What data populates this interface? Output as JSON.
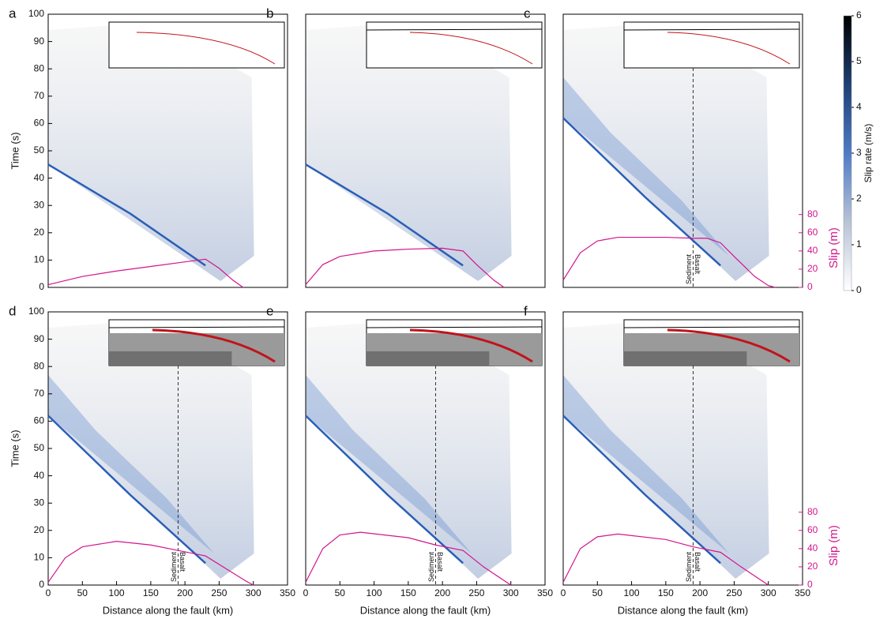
{
  "chart_data": [
    {
      "type": "line",
      "panel": "a",
      "ylabel": "Time (s)",
      "xlim": [
        0,
        350
      ],
      "ylim": [
        0,
        100
      ],
      "y2lim": [
        0,
        300
      ],
      "yticks": [
        0,
        10,
        20,
        30,
        40,
        50,
        60,
        70,
        80,
        90,
        100
      ],
      "series": [
        {
          "color": "#2a5fb8",
          "x": [
            0,
            120,
            230
          ],
          "values": [
            45,
            27,
            8
          ]
        },
        {
          "color": "#d4148c",
          "axis": "y2",
          "x": [
            0,
            50,
            100,
            150,
            200,
            230,
            250,
            270,
            285
          ],
          "values": [
            3,
            12,
            18,
            23,
            28,
            31,
            21,
            8,
            0
          ]
        }
      ]
    },
    {
      "type": "line",
      "panel": "b",
      "xlim": [
        0,
        350
      ],
      "ylim": [
        0,
        100
      ],
      "y2lim": [
        0,
        300
      ],
      "series": [
        {
          "color": "#2a5fb8",
          "x": [
            0,
            120,
            230
          ],
          "values": [
            45,
            27,
            8
          ]
        },
        {
          "color": "#d4148c",
          "axis": "y2",
          "x": [
            0,
            25,
            50,
            100,
            150,
            200,
            230,
            250,
            275,
            290
          ],
          "values": [
            3,
            25,
            34,
            40,
            42,
            43,
            40,
            25,
            8,
            0
          ]
        }
      ]
    },
    {
      "type": "line",
      "panel": "c",
      "ylabel2": "Slip (m)",
      "xlim": [
        0,
        350
      ],
      "ylim": [
        0,
        100
      ],
      "y2lim": [
        0,
        300
      ],
      "y2ticks": [
        0,
        20,
        40,
        60,
        80
      ],
      "boundary_x": 190,
      "boundary_labels": [
        "Sediment",
        "Basalt"
      ],
      "series": [
        {
          "color": "#2a5fb8",
          "x": [
            0,
            120,
            230
          ],
          "values": [
            62,
            33,
            8
          ]
        },
        {
          "color": "#d4148c",
          "axis": "y2",
          "x": [
            0,
            25,
            50,
            80,
            100,
            150,
            190,
            210,
            230,
            250,
            280,
            300,
            310
          ],
          "values": [
            8,
            38,
            51,
            55,
            55,
            55,
            54,
            54,
            49,
            34,
            12,
            2,
            0
          ]
        }
      ]
    },
    {
      "type": "line",
      "panel": "d",
      "ylabel": "Time (s)",
      "xlabel": "Distance along the fault (km)",
      "xlim": [
        0,
        350
      ],
      "ylim": [
        0,
        100
      ],
      "y2lim": [
        0,
        300
      ],
      "xticks": [
        0,
        50,
        100,
        150,
        200,
        250,
        300,
        350
      ],
      "yticks": [
        0,
        10,
        20,
        30,
        40,
        50,
        60,
        70,
        80,
        90,
        100
      ],
      "boundary_x": 190,
      "boundary_labels": [
        "Sediment",
        "Basalt"
      ],
      "series": [
        {
          "color": "#2a5fb8",
          "x": [
            0,
            120,
            230
          ],
          "values": [
            62,
            33,
            8
          ]
        },
        {
          "color": "#d4148c",
          "axis": "y2",
          "x": [
            0,
            25,
            50,
            100,
            150,
            190,
            230,
            260,
            290,
            300
          ],
          "values": [
            3,
            30,
            42,
            48,
            44,
            38,
            32,
            18,
            4,
            0
          ]
        }
      ]
    },
    {
      "type": "line",
      "panel": "e",
      "xlabel": "Distance along the fault (km)",
      "xlim": [
        0,
        350
      ],
      "ylim": [
        0,
        100
      ],
      "y2lim": [
        0,
        300
      ],
      "xticks": [
        0,
        50,
        100,
        150,
        200,
        250,
        300,
        350
      ],
      "boundary_x": 190,
      "boundary_labels": [
        "Sediment",
        "Basalt"
      ],
      "series": [
        {
          "color": "#2a5fb8",
          "x": [
            0,
            120,
            230
          ],
          "values": [
            62,
            33,
            8
          ]
        },
        {
          "color": "#d4148c",
          "axis": "y2",
          "x": [
            0,
            25,
            50,
            80,
            150,
            190,
            230,
            260,
            290,
            300
          ],
          "values": [
            3,
            40,
            55,
            58,
            52,
            44,
            38,
            20,
            5,
            0
          ]
        }
      ]
    },
    {
      "type": "line",
      "panel": "f",
      "xlabel": "Distance along the fault (km)",
      "ylabel2": "Slip (m)",
      "xlim": [
        0,
        350
      ],
      "ylim": [
        0,
        100
      ],
      "y2lim": [
        0,
        300
      ],
      "xticks": [
        0,
        50,
        100,
        150,
        200,
        250,
        300,
        350
      ],
      "y2ticks": [
        0,
        20,
        40,
        60,
        80
      ],
      "boundary_x": 190,
      "boundary_labels": [
        "Sediment",
        "Basalt"
      ],
      "series": [
        {
          "color": "#2a5fb8",
          "x": [
            0,
            120,
            230
          ],
          "values": [
            62,
            33,
            8
          ]
        },
        {
          "color": "#d4148c",
          "axis": "y2",
          "x": [
            0,
            25,
            50,
            80,
            150,
            190,
            230,
            260,
            290,
            300
          ],
          "values": [
            3,
            40,
            53,
            56,
            50,
            42,
            36,
            20,
            5,
            0
          ]
        }
      ]
    }
  ],
  "colorbar": {
    "label": "Slip rate (m/s)",
    "lim": [
      0,
      6
    ],
    "ticks": [
      0,
      1,
      2,
      3,
      4,
      5,
      6
    ]
  }
}
